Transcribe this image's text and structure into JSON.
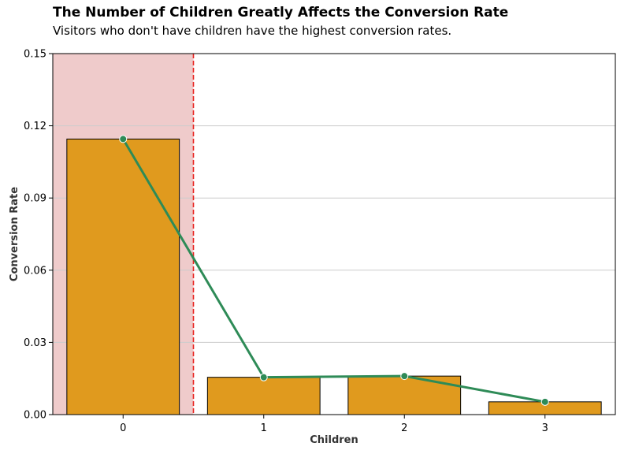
{
  "chart_data": {
    "type": "bar",
    "title": "The Number of Children Greatly Affects the Conversion Rate",
    "subtitle": "Visitors who don't have children have the highest conversion rates.",
    "xlabel": "Children",
    "ylabel": "Conversion Rate",
    "categories": [
      "0",
      "1",
      "2",
      "3"
    ],
    "values": [
      0.1145,
      0.0155,
      0.016,
      0.0053
    ],
    "line_values": [
      0.1145,
      0.0155,
      0.016,
      0.0053
    ],
    "ylim": [
      0,
      0.15
    ],
    "yticks": [
      "0.00",
      "0.03",
      "0.06",
      "0.09",
      "0.12",
      "0.15"
    ],
    "grid": "horizontal",
    "highlight_category": "0",
    "colors": {
      "bar": "#E09A1E",
      "bar_edge": "#000000",
      "line": "#2E8B57",
      "highlight_span": "#EFCBCB",
      "divider": "#E8221F",
      "grid": "#CCCCCC"
    }
  }
}
